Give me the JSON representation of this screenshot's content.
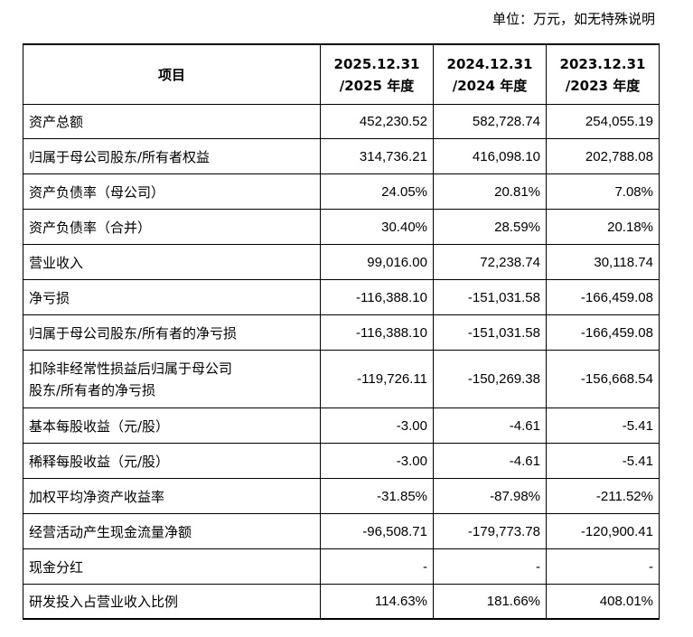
{
  "unit_note": "单位：万元，如无特殊说明",
  "header": {
    "item": "项目",
    "years": [
      {
        "line1": "2025.12.31",
        "line2": "/2025 年度"
      },
      {
        "line1": "2024.12.31",
        "line2": "/2024 年度"
      },
      {
        "line1": "2023.12.31",
        "line2": "/2023 年度"
      }
    ]
  },
  "rows": [
    {
      "label": "资产总额",
      "values": [
        "452,230.52",
        "582,728.74",
        "254,055.19"
      ]
    },
    {
      "label": "归属于母公司股东/所有者权益",
      "values": [
        "314,736.21",
        "416,098.10",
        "202,788.08"
      ]
    },
    {
      "label": "资产负债率（母公司）",
      "values": [
        "24.05%",
        "20.81%",
        "7.08%"
      ]
    },
    {
      "label": "资产负债率（合并）",
      "values": [
        "30.40%",
        "28.59%",
        "20.18%"
      ]
    },
    {
      "label": "营业收入",
      "values": [
        "99,016.00",
        "72,238.74",
        "30,118.74"
      ]
    },
    {
      "label": "净亏损",
      "values": [
        "-116,388.10",
        "-151,031.58",
        "-166,459.08"
      ]
    },
    {
      "label": "归属于母公司股东/所有者的净亏损",
      "values": [
        "-116,388.10",
        "-151,031.58",
        "-166,459.08"
      ]
    },
    {
      "label_line1": "扣除非经常性损益后归属于母公司",
      "label_line2": "股东/所有者的净亏损",
      "values": [
        "-119,726.11",
        "-150,269.38",
        "-156,668.54"
      ]
    },
    {
      "label": "基本每股收益（元/股）",
      "values": [
        "-3.00",
        "-4.61",
        "-5.41"
      ]
    },
    {
      "label": "稀释每股收益（元/股）",
      "values": [
        "-3.00",
        "-4.61",
        "-5.41"
      ]
    },
    {
      "label": "加权平均净资产收益率",
      "values": [
        "-31.85%",
        "-87.98%",
        "-211.52%"
      ]
    },
    {
      "label": "经营活动产生现金流量净额",
      "values": [
        "-96,508.71",
        "-179,773.78",
        "-120,900.41"
      ]
    },
    {
      "label": "现金分红",
      "values": [
        "-",
        "-",
        "-"
      ]
    },
    {
      "label": "研发投入占营业收入比例",
      "values": [
        "114.63%",
        "181.66%",
        "408.01%"
      ]
    }
  ]
}
